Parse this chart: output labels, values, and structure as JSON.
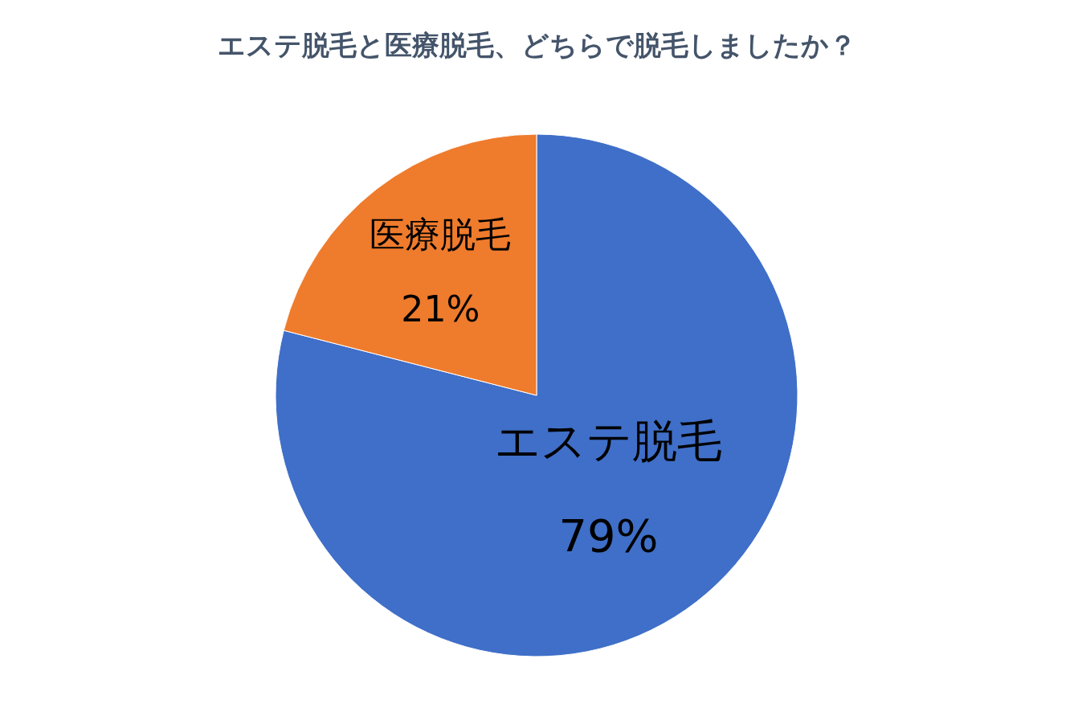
{
  "chart_data": {
    "type": "pie",
    "title": "エステ脱毛と医療脱毛、どちらで脱毛しましたか？",
    "categories": [
      "エステ脱毛",
      "医療脱毛"
    ],
    "values": [
      79,
      21
    ],
    "value_labels": [
      "79%",
      "21%"
    ],
    "colors": [
      "#3f6fc8",
      "#ef7b2c"
    ]
  }
}
